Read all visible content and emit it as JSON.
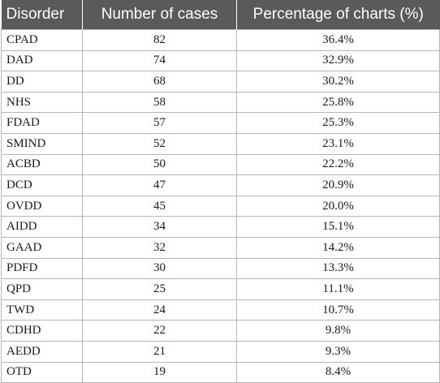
{
  "table": {
    "headers": [
      "Disorder",
      "Number of cases",
      "Percentage of charts (%)"
    ],
    "rows": [
      [
        "CPAD",
        "82",
        "36.4%"
      ],
      [
        "DAD",
        "74",
        "32.9%"
      ],
      [
        "DD",
        "68",
        "30.2%"
      ],
      [
        "NHS",
        "58",
        "25.8%"
      ],
      [
        "FDAD",
        "57",
        "25.3%"
      ],
      [
        "SMIND",
        "52",
        "23.1%"
      ],
      [
        "ACBD",
        "50",
        "22.2%"
      ],
      [
        "DCD",
        "47",
        "20.9%"
      ],
      [
        "OVDD",
        "45",
        "20.0%"
      ],
      [
        "AIDD",
        "34",
        "15.1%"
      ],
      [
        "GAAD",
        "32",
        "14.2%"
      ],
      [
        "PDFD",
        "30",
        "13.3%"
      ],
      [
        "QPD",
        "25",
        "11.1%"
      ],
      [
        "TWD",
        "24",
        "10.7%"
      ],
      [
        "CDHD",
        "22",
        "9.8%"
      ],
      [
        "AEDD",
        "21",
        "9.3%"
      ],
      [
        "OTD",
        "19",
        "8.4%"
      ]
    ]
  },
  "colors": {
    "header_bg": "#5a5a5a",
    "header_text": "#ffffff",
    "border": "#b5b5b5"
  }
}
